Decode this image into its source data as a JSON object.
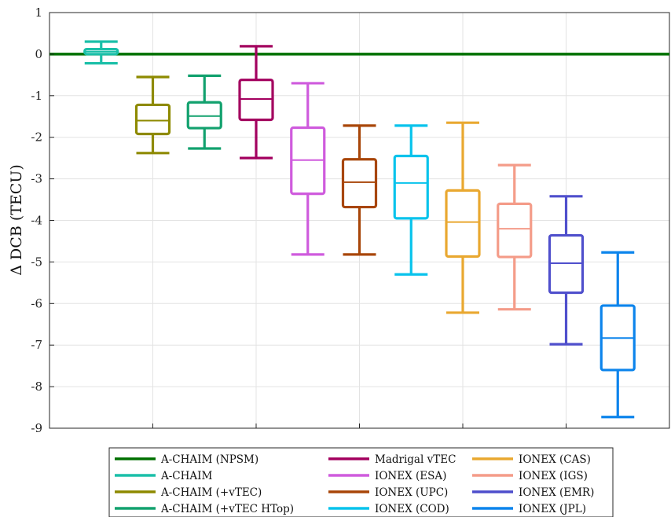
{
  "chart_data": {
    "type": "box",
    "title": "",
    "xlabel": "",
    "ylabel": "Δ DCB (TECU)",
    "ylim": [
      -9,
      1
    ],
    "yticks": [
      1,
      0,
      -1,
      -2,
      -3,
      -4,
      -5,
      -6,
      -7,
      -8,
      -9
    ],
    "ytick_labels": [
      "1",
      "0",
      "-1",
      "-2",
      "-3",
      "-4",
      "-5",
      "-6",
      "-7",
      "-8",
      "-9"
    ],
    "grid": true,
    "legend_placement": "bottom (below plot)",
    "reference_line": {
      "name": "A-CHAIM (NPSM)",
      "value": 0,
      "color": "#007000"
    },
    "series": [
      {
        "name": "A-CHAIM",
        "color": "#1ABFA8",
        "whisker_low": -0.22,
        "q1": 0.0,
        "median": 0.06,
        "q3": 0.12,
        "whisker_high": 0.3
      },
      {
        "name": "A-CHAIM (+vTEC)",
        "color": "#8E8A00",
        "whisker_low": -2.38,
        "q1": -1.92,
        "median": -1.6,
        "q3": -1.22,
        "whisker_high": -0.55
      },
      {
        "name": "A-CHAIM (+vTEC HTop)",
        "color": "#12A16E",
        "whisker_low": -2.27,
        "q1": -1.78,
        "median": -1.49,
        "q3": -1.16,
        "whisker_high": -0.52
      },
      {
        "name": "Madrigal vTEC",
        "color": "#A3005F",
        "whisker_low": -2.5,
        "q1": -1.58,
        "median": -1.08,
        "q3": -0.62,
        "whisker_high": 0.19
      },
      {
        "name": "IONEX (ESA)",
        "color": "#CF5BDD",
        "whisker_low": -4.82,
        "q1": -3.36,
        "median": -2.55,
        "q3": -1.77,
        "whisker_high": -0.7
      },
      {
        "name": "IONEX (UPC)",
        "color": "#A84609",
        "whisker_low": -4.82,
        "q1": -3.68,
        "median": -3.08,
        "q3": -2.53,
        "whisker_high": -1.72
      },
      {
        "name": "IONEX (COD)",
        "color": "#08C3EC",
        "whisker_low": -5.3,
        "q1": -3.95,
        "median": -3.1,
        "q3": -2.45,
        "whisker_high": -1.72
      },
      {
        "name": "IONEX (CAS)",
        "color": "#E9A830",
        "whisker_low": -6.22,
        "q1": -4.87,
        "median": -4.04,
        "q3": -3.28,
        "whisker_high": -1.65
      },
      {
        "name": "IONEX (IGS)",
        "color": "#F49C89",
        "whisker_low": -6.14,
        "q1": -4.88,
        "median": -4.2,
        "q3": -3.6,
        "whisker_high": -2.67
      },
      {
        "name": "IONEX (EMR)",
        "color": "#4F4FCC",
        "whisker_low": -6.98,
        "q1": -5.74,
        "median": -5.03,
        "q3": -4.36,
        "whisker_high": -3.42
      },
      {
        "name": "IONEX (JPL)",
        "color": "#0C84EC",
        "whisker_low": -8.73,
        "q1": -7.6,
        "median": -6.83,
        "q3": -6.05,
        "whisker_high": -4.77
      }
    ],
    "legend": [
      [
        "A-CHAIM (NPSM)",
        "#007000"
      ],
      [
        "A-CHAIM",
        "#1ABFA8"
      ],
      [
        "A-CHAIM (+vTEC)",
        "#8E8A00"
      ],
      [
        "A-CHAIM (+vTEC HTop)",
        "#12A16E"
      ],
      [
        "Madrigal vTEC",
        "#A3005F"
      ],
      [
        "IONEX (ESA)",
        "#CF5BDD"
      ],
      [
        "IONEX (UPC)",
        "#A84609"
      ],
      [
        "IONEX (COD)",
        "#08C3EC"
      ],
      [
        "IONEX (CAS)",
        "#E9A830"
      ],
      [
        "IONEX (IGS)",
        "#F49C89"
      ],
      [
        "IONEX (EMR)",
        "#4F4FCC"
      ],
      [
        "IONEX (JPL)",
        "#0C84EC"
      ]
    ]
  }
}
